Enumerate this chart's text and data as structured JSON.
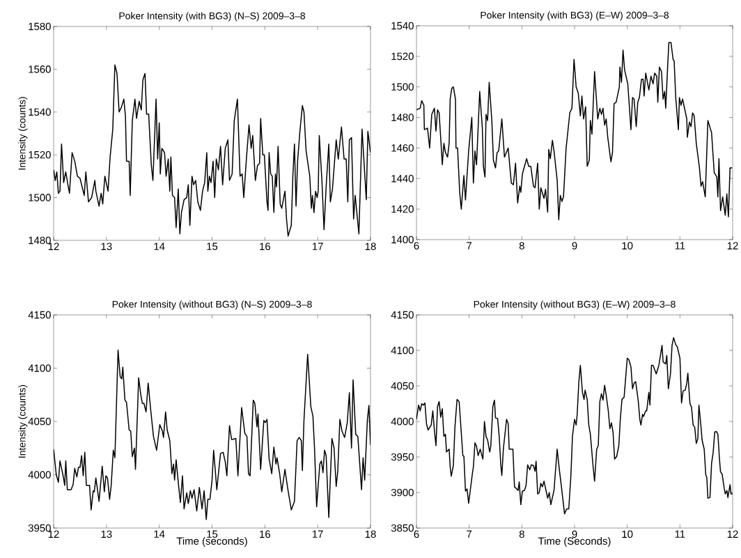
{
  "chart_data": [
    {
      "type": "line",
      "title": "Poker Intensity (with BG3) (N–S) 2009–3–8",
      "ylabel": "Intensity (counts)",
      "xlim": [
        12,
        18
      ],
      "ylim": [
        1480,
        1580
      ],
      "xticks": [
        12,
        13,
        14,
        15,
        16,
        17,
        18
      ],
      "yticks": [
        1480,
        1500,
        1520,
        1540,
        1560,
        1580
      ],
      "grid": false,
      "marker": "none",
      "line_style": "solid",
      "x": [
        12.0,
        12.03,
        12.06,
        12.09,
        12.12,
        12.15,
        12.19,
        12.23,
        12.27,
        12.3,
        12.35,
        12.4,
        12.45,
        12.5,
        12.58,
        12.61,
        12.66,
        12.72,
        12.78,
        12.8,
        12.86,
        12.9,
        12.93,
        12.97,
        13.03,
        13.07,
        13.12,
        13.16,
        13.2,
        13.24,
        13.28,
        13.33,
        13.36,
        13.38,
        13.43,
        13.45,
        13.49,
        13.54,
        13.57,
        13.62,
        13.66,
        13.69,
        13.73,
        13.76,
        13.8,
        13.85,
        13.88,
        13.94,
        13.97,
        14.0,
        14.02,
        14.05,
        14.1,
        14.13,
        14.17,
        14.2,
        14.22,
        14.25,
        14.29,
        14.32,
        14.36,
        14.39,
        14.42,
        14.47,
        14.52,
        14.55,
        14.58,
        14.62,
        14.65,
        14.69,
        14.73,
        14.78,
        14.82,
        14.86,
        14.9,
        14.92,
        14.95,
        14.98,
        15.02,
        15.05,
        15.08,
        15.12,
        15.16,
        15.2,
        15.25,
        15.3,
        15.33,
        15.38,
        15.42,
        15.48,
        15.53,
        15.57,
        15.6,
        15.65,
        15.7,
        15.74,
        15.77,
        15.82,
        15.86,
        15.9,
        15.92,
        15.96,
        15.99,
        16.04,
        16.06,
        16.08,
        16.11,
        16.14,
        16.17,
        16.2,
        16.22,
        16.25,
        16.29,
        16.32,
        16.38,
        16.41,
        16.44,
        16.5,
        16.53,
        16.56,
        16.59,
        16.62,
        16.66,
        16.71,
        16.74,
        16.78,
        16.85,
        16.88,
        16.9,
        16.93,
        16.96,
        16.99,
        17.01,
        17.03,
        17.08,
        17.12,
        17.16,
        17.21,
        17.24,
        17.28,
        17.35,
        17.39,
        17.45,
        17.5,
        17.54,
        17.57,
        17.6,
        17.64,
        17.68,
        17.71,
        17.78,
        17.84,
        17.92,
        17.95,
        18.0
      ],
      "series": [
        {
          "color": "#000000",
          "values": [
            1513,
            1508,
            1512,
            1502,
            1503,
            1525,
            1507,
            1512,
            1506,
            1502,
            1521,
            1517,
            1510,
            1509,
            1501,
            1512,
            1498,
            1500,
            1508,
            1503,
            1496,
            1502,
            1497,
            1510,
            1503,
            1519,
            1532,
            1562,
            1558,
            1540,
            1542,
            1546,
            1538,
            1517,
            1517,
            1501,
            1536,
            1546,
            1537,
            1545,
            1541,
            1555,
            1558,
            1539,
            1539,
            1515,
            1508,
            1546,
            1518,
            1535,
            1511,
            1523,
            1521,
            1510,
            1518,
            1503,
            1519,
            1501,
            1500,
            1486,
            1504,
            1483,
            1493,
            1499,
            1500,
            1506,
            1487,
            1510,
            1506,
            1508,
            1498,
            1494,
            1503,
            1507,
            1521,
            1503,
            1510,
            1507,
            1517,
            1500,
            1518,
            1513,
            1524,
            1506,
            1523,
            1527,
            1508,
            1511,
            1536,
            1546,
            1510,
            1511,
            1500,
            1518,
            1534,
            1523,
            1529,
            1508,
            1515,
            1516,
            1537,
            1520,
            1520,
            1498,
            1494,
            1521,
            1511,
            1510,
            1493,
            1511,
            1505,
            1524,
            1497,
            1495,
            1503,
            1490,
            1482,
            1487,
            1510,
            1525,
            1496,
            1517,
            1530,
            1543,
            1540,
            1522,
            1510,
            1495,
            1501,
            1493,
            1503,
            1500,
            1503,
            1529,
            1508,
            1485,
            1505,
            1525,
            1498,
            1504,
            1527,
            1518,
            1533,
            1518,
            1518,
            1498,
            1527,
            1528,
            1490,
            1501,
            1483,
            1532,
            1499,
            1531,
            1521
          ]
        }
      ]
    },
    {
      "type": "line",
      "title": "Poker Intensity (with BG3) (E–W) 2009–3–8",
      "xlim": [
        6,
        12
      ],
      "ylim": [
        1400,
        1540
      ],
      "xticks": [
        6,
        7,
        8,
        9,
        10,
        11,
        12
      ],
      "yticks": [
        1400,
        1420,
        1440,
        1460,
        1480,
        1500,
        1520,
        1540
      ],
      "grid": false,
      "marker": "none",
      "line_style": "solid",
      "x": [
        6.0,
        6.07,
        6.1,
        6.14,
        6.15,
        6.21,
        6.25,
        6.29,
        6.34,
        6.37,
        6.4,
        6.43,
        6.47,
        6.49,
        6.52,
        6.55,
        6.59,
        6.62,
        6.64,
        6.67,
        6.7,
        6.74,
        6.75,
        6.78,
        6.82,
        6.85,
        6.9,
        6.93,
        6.99,
        7.05,
        7.08,
        7.11,
        7.14,
        7.2,
        7.25,
        7.27,
        7.3,
        7.32,
        7.35,
        7.38,
        7.43,
        7.46,
        7.5,
        7.53,
        7.56,
        7.62,
        7.67,
        7.74,
        7.8,
        7.84,
        7.88,
        7.92,
        7.96,
        7.98,
        8.01,
        8.09,
        8.13,
        8.17,
        8.22,
        8.25,
        8.3,
        8.33,
        8.36,
        8.42,
        8.45,
        8.49,
        8.51,
        8.54,
        8.58,
        8.61,
        8.67,
        8.7,
        8.73,
        8.76,
        8.79,
        8.84,
        8.91,
        8.95,
        8.99,
        9.03,
        9.07,
        9.11,
        9.14,
        9.17,
        9.21,
        9.24,
        9.28,
        9.3,
        9.33,
        9.38,
        9.44,
        9.48,
        9.51,
        9.54,
        9.57,
        9.6,
        9.63,
        9.69,
        9.72,
        9.75,
        9.79,
        9.85,
        9.86,
        9.89,
        9.92,
        9.95,
        10.01,
        10.07,
        10.1,
        10.13,
        10.17,
        10.2,
        10.23,
        10.27,
        10.3,
        10.32,
        10.35,
        10.41,
        10.45,
        10.49,
        10.52,
        10.56,
        10.58,
        10.61,
        10.65,
        10.68,
        10.71,
        10.73,
        10.77,
        10.79,
        10.83,
        10.87,
        10.89,
        10.92,
        10.97,
        10.99,
        11.02,
        11.05,
        11.13,
        11.14,
        11.18,
        11.21,
        11.24,
        11.27,
        11.31,
        11.37,
        11.4,
        11.43,
        11.48,
        11.53,
        11.6,
        11.65,
        11.7,
        11.72,
        11.74,
        11.77,
        11.81,
        11.86,
        11.89,
        11.92,
        11.95,
        11.99
      ],
      "series": [
        {
          "color": "#000000",
          "values": [
            1485,
            1486,
            1491,
            1488,
            1472,
            1473,
            1460,
            1482,
            1486,
            1471,
            1485,
            1483,
            1461,
            1449,
            1463,
            1457,
            1454,
            1463,
            1492,
            1499,
            1500,
            1492,
            1460,
            1460,
            1431,
            1420,
            1442,
            1426,
            1458,
            1480,
            1437,
            1458,
            1449,
            1497,
            1473,
            1448,
            1441,
            1482,
            1478,
            1503,
            1478,
            1452,
            1447,
            1457,
            1458,
            1479,
            1454,
            1460,
            1437,
            1436,
            1450,
            1424,
            1435,
            1431,
            1443,
            1453,
            1448,
            1448,
            1435,
            1434,
            1450,
            1420,
            1434,
            1427,
            1433,
            1418,
            1459,
            1453,
            1465,
            1458,
            1439,
            1413,
            1429,
            1425,
            1428,
            1460,
            1483,
            1486,
            1518,
            1500,
            1496,
            1481,
            1494,
            1479,
            1487,
            1448,
            1452,
            1478,
            1469,
            1510,
            1479,
            1486,
            1482,
            1486,
            1475,
            1479,
            1467,
            1451,
            1457,
            1489,
            1490,
            1500,
            1513,
            1503,
            1524,
            1511,
            1502,
            1472,
            1493,
            1492,
            1474,
            1490,
            1493,
            1505,
            1505,
            1494,
            1509,
            1498,
            1507,
            1502,
            1509,
            1507,
            1490,
            1513,
            1510,
            1492,
            1497,
            1486,
            1516,
            1529,
            1529,
            1518,
            1517,
            1493,
            1472,
            1493,
            1488,
            1492,
            1479,
            1467,
            1477,
            1474,
            1483,
            1481,
            1463,
            1447,
            1435,
            1438,
            1428,
            1478,
            1470,
            1444,
            1441,
            1428,
            1453,
            1419,
            1428,
            1416,
            1430,
            1415,
            1447,
            1447
          ]
        }
      ]
    },
    {
      "type": "line",
      "title": "Poker Intensity (without BG3) (N–S) 2009–3–8",
      "xlabel": "Time (seconds)",
      "ylabel": "Intensity (counts)",
      "xlim": [
        12,
        18
      ],
      "ylim": [
        3950,
        4150
      ],
      "xticks": [
        12,
        13,
        14,
        15,
        16,
        17,
        18
      ],
      "yticks": [
        3950,
        4000,
        4050,
        4100,
        4150
      ],
      "grid": false,
      "marker": "none",
      "line_style": "solid",
      "x": [
        12.0,
        12.05,
        12.09,
        12.12,
        12.18,
        12.21,
        12.23,
        12.26,
        12.33,
        12.37,
        12.4,
        12.44,
        12.47,
        12.5,
        12.53,
        12.56,
        12.59,
        12.62,
        12.68,
        12.71,
        12.75,
        12.77,
        12.8,
        12.86,
        12.92,
        12.96,
        12.99,
        13.02,
        13.06,
        13.09,
        13.13,
        13.16,
        13.22,
        13.26,
        13.29,
        13.31,
        13.35,
        13.38,
        13.43,
        13.46,
        13.49,
        13.53,
        13.55,
        13.61,
        13.65,
        13.68,
        13.71,
        13.75,
        13.79,
        13.84,
        13.89,
        13.95,
        14.01,
        14.06,
        14.08,
        14.12,
        14.15,
        14.2,
        14.24,
        14.27,
        14.29,
        14.32,
        14.37,
        14.4,
        14.44,
        14.47,
        14.52,
        14.55,
        14.59,
        14.62,
        14.66,
        14.71,
        14.76,
        14.81,
        14.85,
        14.89,
        14.92,
        14.96,
        15.0,
        15.03,
        15.09,
        15.16,
        15.21,
        15.25,
        15.28,
        15.33,
        15.37,
        15.45,
        15.49,
        15.56,
        15.62,
        15.66,
        15.69,
        15.72,
        15.78,
        15.81,
        15.85,
        15.87,
        15.92,
        15.98,
        16.01,
        16.04,
        16.08,
        16.13,
        16.17,
        16.21,
        16.23,
        16.28,
        16.32,
        16.38,
        16.43,
        16.5,
        16.56,
        16.61,
        16.65,
        16.69,
        16.71,
        16.74,
        16.81,
        16.87,
        16.91,
        16.94,
        16.98,
        17.04,
        17.07,
        17.1,
        17.13,
        17.16,
        17.21,
        17.27,
        17.31,
        17.35,
        17.38,
        17.42,
        17.46,
        17.51,
        17.56,
        17.6,
        17.64,
        17.67,
        17.72,
        17.76,
        17.83,
        17.86,
        17.89,
        17.94,
        17.97,
        18.0
      ],
      "series": [
        {
          "color": "#000000",
          "values": [
            4024,
            4000,
            3993,
            4013,
            3999,
            3990,
            4013,
            3986,
            3986,
            3991,
            4006,
            3998,
            4007,
            4007,
            4018,
            3999,
            4021,
            3990,
            3990,
            3967,
            3985,
            3984,
            3997,
            3975,
            4008,
            3984,
            3999,
            3997,
            3977,
            3990,
            4023,
            4016,
            4117,
            4092,
            4090,
            4101,
            4070,
            4068,
            4042,
            4041,
            4017,
            4025,
            4005,
            4091,
            4075,
            4067,
            4067,
            4059,
            4086,
            4060,
            4036,
            4023,
            4047,
            4041,
            4035,
            4059,
            4042,
            4032,
            4001,
            4010,
            3995,
            4014,
            3988,
            3974,
            3999,
            3968,
            3983,
            3973,
            3985,
            3978,
            3986,
            3966,
            3988,
            3968,
            3985,
            3958,
            3977,
            3977,
            3995,
            4023,
            3986,
            4020,
            4021,
            4012,
            3999,
            4046,
            4033,
            4034,
            3999,
            4063,
            4039,
            4036,
            4001,
            3999,
            4070,
            4067,
            4045,
            4057,
            4005,
            4051,
            4049,
            4052,
            4015,
            4001,
            4026,
            4010,
            4016,
            4001,
            3984,
            4005,
            3988,
            3967,
            3975,
            4032,
            4035,
            4032,
            4004,
            4051,
            4113,
            4064,
            4055,
            4025,
            3970,
            4010,
            4013,
            4002,
            4023,
            4018,
            3960,
            4034,
            4025,
            3989,
            4003,
            4052,
            4041,
            4035,
            4049,
            4077,
            4025,
            4089,
            4038,
            4036,
            3986,
            4016,
            3995,
            4051,
            4065,
            4028
          ]
        }
      ]
    },
    {
      "type": "line",
      "title": "Poker Intensity (without BG3) (E–W) 2009–3–8",
      "xlabel": "Time (Seconds)",
      "xlim": [
        6,
        12
      ],
      "ylim": [
        3850,
        4150
      ],
      "xticks": [
        6,
        7,
        8,
        9,
        10,
        11,
        12
      ],
      "yticks": [
        3850,
        3900,
        3950,
        4000,
        4050,
        4100,
        4150
      ],
      "grid": false,
      "marker": "none",
      "line_style": "solid",
      "x": [
        6.0,
        6.04,
        6.07,
        6.1,
        6.13,
        6.16,
        6.19,
        6.22,
        6.28,
        6.31,
        6.34,
        6.37,
        6.4,
        6.43,
        6.46,
        6.49,
        6.52,
        6.55,
        6.57,
        6.62,
        6.64,
        6.66,
        6.7,
        6.73,
        6.77,
        6.81,
        6.88,
        6.9,
        6.93,
        6.96,
        6.99,
        7.06,
        7.08,
        7.11,
        7.14,
        7.17,
        7.21,
        7.26,
        7.29,
        7.32,
        7.35,
        7.39,
        7.41,
        7.45,
        7.48,
        7.5,
        7.54,
        7.57,
        7.6,
        7.62,
        7.65,
        7.71,
        7.74,
        7.76,
        7.83,
        7.86,
        7.89,
        7.93,
        7.95,
        7.98,
        8.01,
        8.05,
        8.08,
        8.11,
        8.15,
        8.18,
        8.22,
        8.25,
        8.27,
        8.3,
        8.33,
        8.36,
        8.39,
        8.42,
        8.49,
        8.52,
        8.55,
        8.61,
        8.67,
        8.71,
        8.74,
        8.81,
        8.85,
        8.89,
        8.93,
        8.96,
        9.0,
        9.03,
        9.05,
        9.08,
        9.11,
        9.15,
        9.18,
        9.2,
        9.24,
        9.27,
        9.3,
        9.35,
        9.38,
        9.42,
        9.45,
        9.48,
        9.51,
        9.54,
        9.57,
        9.6,
        9.64,
        9.67,
        9.7,
        9.73,
        9.76,
        9.8,
        9.84,
        9.87,
        9.9,
        9.94,
        10.0,
        10.03,
        10.07,
        10.1,
        10.13,
        10.16,
        10.21,
        10.24,
        10.26,
        10.29,
        10.31,
        10.35,
        10.37,
        10.41,
        10.43,
        10.46,
        10.49,
        10.55,
        10.6,
        10.66,
        10.68,
        10.73,
        10.75,
        10.78,
        10.82,
        10.85,
        10.88,
        10.92,
        10.95,
        11.0,
        11.03,
        11.06,
        11.1,
        11.13,
        11.15,
        11.19,
        11.22,
        11.25,
        11.28,
        11.31,
        11.34,
        11.36,
        11.4,
        11.42,
        11.46,
        11.49,
        11.51,
        11.53,
        11.57,
        11.6,
        11.63,
        11.66,
        11.69,
        11.72,
        11.75,
        11.77,
        11.8,
        11.84,
        11.86,
        11.89,
        11.91,
        11.95,
        11.97,
        12.0
      ],
      "series": [
        {
          "color": "#000000",
          "values": [
            4003,
            4023,
            4015,
            4025,
            4023,
            4026,
            3997,
            3988,
            3995,
            4015,
            3988,
            3966,
            4021,
            4028,
            4006,
            4018,
            3979,
            3982,
            3957,
            3961,
            3936,
            3923,
            3938,
            3992,
            4031,
            4028,
            3952,
            3951,
            3902,
            3905,
            3885,
            3926,
            3936,
            3970,
            3965,
            3952,
            3961,
            3947,
            4000,
            3979,
            3974,
            3957,
            3965,
            4021,
            4030,
            4005,
            4004,
            3979,
            3939,
            3924,
            3962,
            4003,
            3997,
            3961,
            3961,
            3908,
            3906,
            3903,
            3915,
            3883,
            3902,
            3903,
            3910,
            3939,
            3932,
            3939,
            3938,
            3930,
            3944,
            3898,
            3900,
            3913,
            3908,
            3916,
            3892,
            3900,
            3883,
            3903,
            3961,
            3933,
            3915,
            3870,
            3877,
            3877,
            3923,
            3979,
            4003,
            3995,
            4010,
            4054,
            4079,
            4041,
            4031,
            4044,
            4031,
            3995,
            3982,
            3938,
            3916,
            3961,
            3966,
            4028,
            4039,
            4030,
            4051,
            4037,
            4015,
            3990,
            3998,
            3985,
            3947,
            3951,
            3966,
            4005,
            4031,
            4034,
            4089,
            4087,
            4077,
            4046,
            4054,
            4056,
            4028,
            4002,
            3995,
            4010,
            4007,
            4015,
            4015,
            4041,
            4023,
            4079,
            4079,
            4067,
            4079,
            4107,
            4084,
            4081,
            4093,
            4046,
            4067,
            4107,
            4118,
            4108,
            4105,
            4089,
            4026,
            4043,
            4044,
            4054,
            4068,
            4025,
            4020,
            3995,
            3992,
            3969,
            3976,
            4023,
            3992,
            3974,
            3961,
            3925,
            3921,
            3892,
            3893,
            3941,
            3956,
            3985,
            3986,
            3982,
            3947,
            3929,
            3926,
            3906,
            3898,
            3903,
            3893,
            3911,
            3898,
            3898
          ]
        }
      ]
    }
  ]
}
